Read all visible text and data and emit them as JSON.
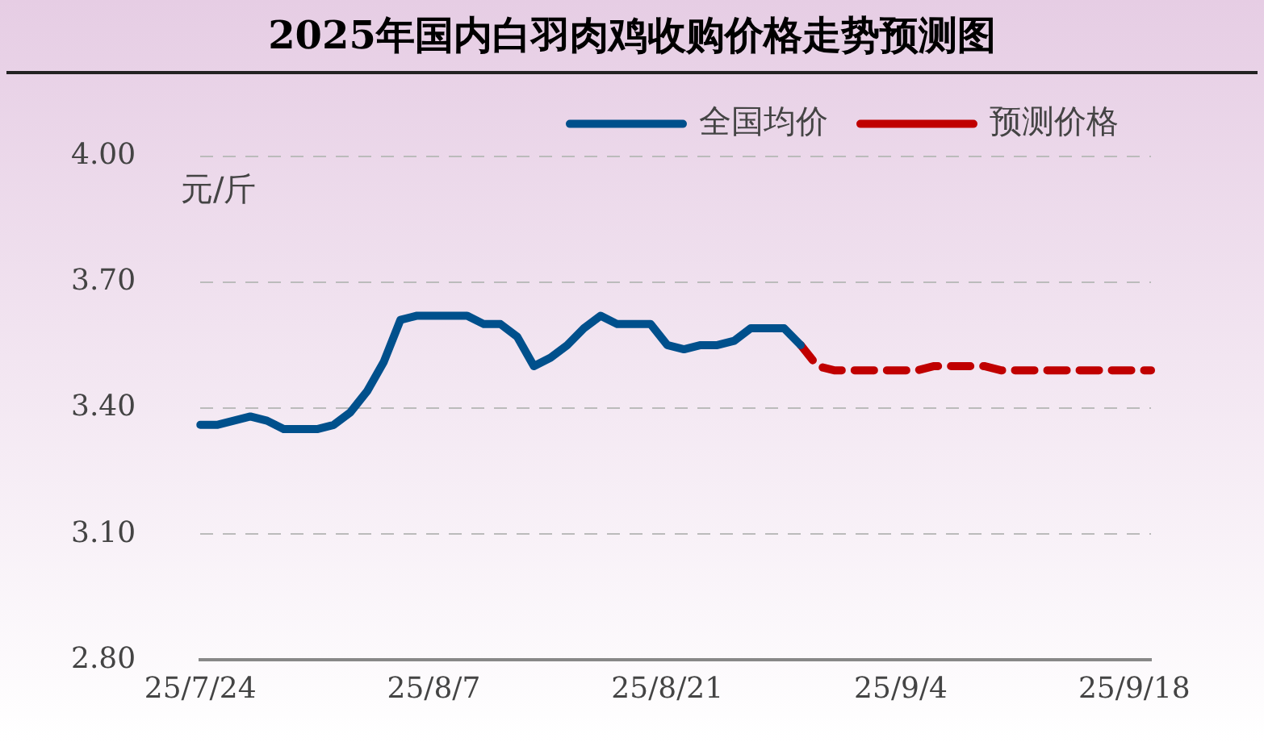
{
  "chart_data": {
    "type": "line",
    "title": "2025年国内白羽肉鸡收购价格走势预测图",
    "ylabel": "元/斤",
    "categories": [
      "25/7/24",
      null,
      null,
      null,
      null,
      null,
      null,
      null,
      null,
      null,
      null,
      null,
      null,
      null,
      "25/8/7",
      null,
      null,
      null,
      null,
      null,
      null,
      null,
      null,
      null,
      null,
      null,
      null,
      null,
      "25/8/21",
      null,
      null,
      null,
      null,
      null,
      null,
      null,
      null,
      null,
      null,
      null,
      null,
      null,
      "25/9/4",
      null,
      null,
      null,
      null,
      null,
      null,
      null,
      null,
      null,
      null,
      null,
      null,
      null,
      "25/9/18",
      null
    ],
    "series": [
      {
        "name": "全国均价",
        "color": "#00508c",
        "line_style": "solid",
        "values": [
          3.36,
          3.36,
          3.37,
          3.38,
          3.37,
          3.35,
          3.35,
          3.35,
          3.36,
          3.39,
          3.44,
          3.51,
          3.61,
          3.62,
          3.62,
          3.62,
          3.62,
          3.6,
          3.6,
          3.57,
          3.5,
          3.52,
          3.55,
          3.59,
          3.62,
          3.6,
          3.6,
          3.6,
          3.55,
          3.54,
          3.55,
          3.55,
          3.56,
          3.59,
          3.59,
          3.59,
          3.55,
          null,
          null,
          null,
          null,
          null,
          null,
          null,
          null,
          null,
          null,
          null,
          null,
          null,
          null,
          null,
          null,
          null,
          null,
          null,
          null,
          null
        ]
      },
      {
        "name": "预测价格",
        "color": "#c00000",
        "line_style": "dashed",
        "values": [
          null,
          null,
          null,
          null,
          null,
          null,
          null,
          null,
          null,
          null,
          null,
          null,
          null,
          null,
          null,
          null,
          null,
          null,
          null,
          null,
          null,
          null,
          null,
          null,
          null,
          null,
          null,
          null,
          null,
          null,
          null,
          null,
          null,
          null,
          null,
          null,
          3.55,
          3.5,
          3.49,
          3.49,
          3.49,
          3.49,
          3.49,
          3.49,
          3.5,
          3.5,
          3.5,
          3.5,
          3.49,
          3.49,
          3.49,
          3.49,
          3.49,
          3.49,
          3.49,
          3.49,
          3.49,
          3.49
        ]
      }
    ],
    "ylim": [
      2.8,
      4.0
    ],
    "yticks": [
      {
        "value": 2.8,
        "label": "2.80"
      },
      {
        "value": 3.1,
        "label": "3.10"
      },
      {
        "value": 3.4,
        "label": "3.40"
      },
      {
        "value": 3.7,
        "label": "3.70"
      },
      {
        "value": 4.0,
        "label": "4.00"
      }
    ],
    "grid": "y",
    "legend": "top right",
    "marker": "none"
  }
}
